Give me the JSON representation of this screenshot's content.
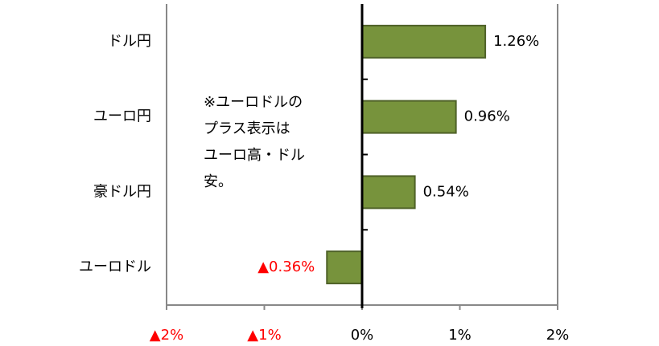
{
  "chart_data": {
    "type": "hbar",
    "categories": [
      "ドル円",
      "ユーロ円",
      "豪ドル円",
      "ユーロドル"
    ],
    "values": [
      1.26,
      0.96,
      0.54,
      -0.36
    ],
    "value_labels": [
      "1.26%",
      "0.96%",
      "0.54%",
      "▲0.36%"
    ],
    "color": "#77933c",
    "negative_label_color": "#ff0000",
    "xlim": [
      -2,
      2
    ],
    "xticks": [
      {
        "value": -2,
        "label": "▲2%"
      },
      {
        "value": -1,
        "label": "▲1%"
      },
      {
        "value": 0,
        "label": "0%"
      },
      {
        "value": 1,
        "label": "1%"
      },
      {
        "value": 2,
        "label": "2%"
      }
    ],
    "annotation": [
      "※ユーロドルの",
      "プラス表示は",
      "ユーロ高・ドル",
      "安。"
    ]
  }
}
